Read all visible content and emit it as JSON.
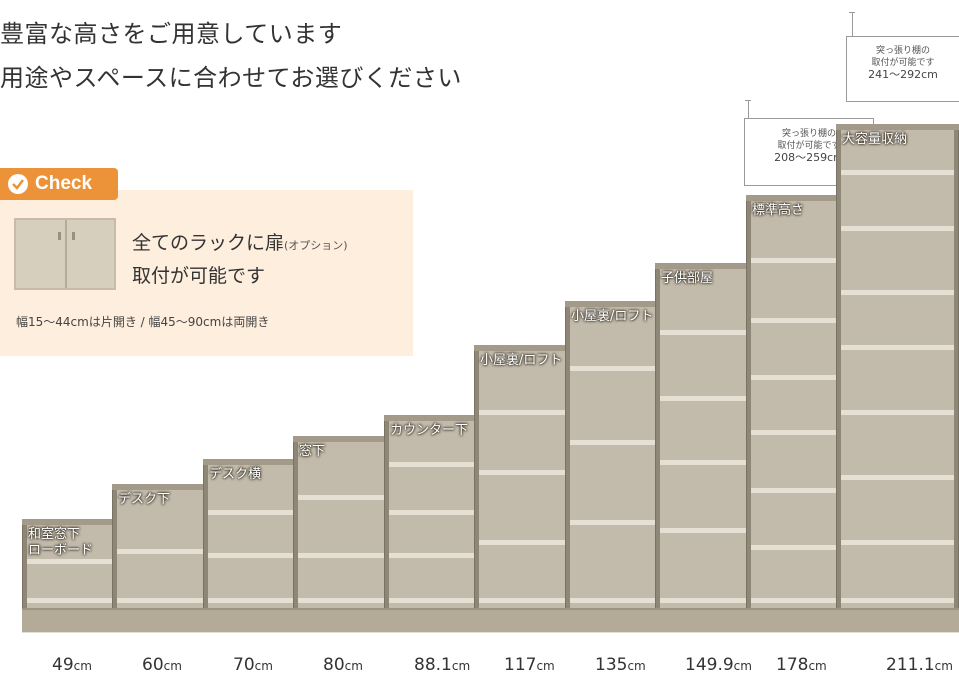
{
  "headline": {
    "line1": "豊富な高さをご用意しています",
    "line2": "用途やスペースに合わせてお選びください"
  },
  "check": {
    "badge": "Check",
    "line1": "全てのラックに扉",
    "line1_option": "(オプション)",
    "line2": "取付が可能です",
    "note": "幅15～44cmは片開き / 幅45～90cmは両開き"
  },
  "callouts": [
    {
      "line1": "突っ張り棚の",
      "line2": "取付が可能です",
      "range": "208～259cm"
    },
    {
      "line1": "突っ張り棚の",
      "line2": "取付が可能です",
      "range": "241～292cm"
    }
  ],
  "racks": [
    {
      "label": "和室窓下\nローボード",
      "height": "49",
      "unit": "cm"
    },
    {
      "label": "デスク下",
      "height": "60",
      "unit": "cm"
    },
    {
      "label": "デスク横",
      "height": "70",
      "unit": "cm"
    },
    {
      "label": "窓下",
      "height": "80",
      "unit": "cm"
    },
    {
      "label": "カウンター下",
      "height": "88.1",
      "unit": "cm"
    },
    {
      "label": "小屋裏/ロフト",
      "height": "117",
      "unit": "cm"
    },
    {
      "label": "小屋裏/ロフト",
      "height": "135",
      "unit": "cm"
    },
    {
      "label": "子供部屋",
      "height": "149.9",
      "unit": "cm"
    },
    {
      "label": "標準高さ",
      "height": "178",
      "unit": "cm"
    },
    {
      "label": "大容量収納",
      "height": "211.1",
      "unit": "cm"
    }
  ],
  "colors": {
    "accent": "#ec9339",
    "panel": "#fdeedd",
    "shelf_body": "#8e8676",
    "shelf_inner": "#c2baaa"
  }
}
